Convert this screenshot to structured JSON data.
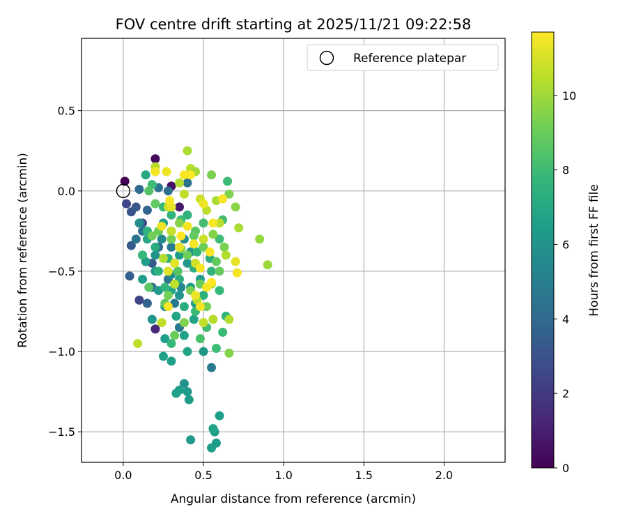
{
  "chart_data": {
    "type": "scatter",
    "title": "FOV centre drift starting at 2025/11/21 09:22:58",
    "xlabel": "Angular distance from reference (arcmin)",
    "ylabel": "Rotation from reference (arcmin)",
    "xlim": [
      -0.26,
      2.38
    ],
    "ylim": [
      -1.69,
      0.95
    ],
    "xticks": [
      0.0,
      0.5,
      1.0,
      1.5,
      2.0
    ],
    "xtick_labels": [
      "0.0",
      "0.5",
      "1.0",
      "1.5",
      "2.0"
    ],
    "yticks": [
      0.5,
      0.0,
      -0.5,
      -1.0,
      -1.5
    ],
    "ytick_labels": [
      "0.5",
      "0.0",
      "−0.5",
      "−1.0",
      "−1.5"
    ],
    "grid": true,
    "legend": {
      "position": "top-right",
      "entries": [
        "Reference platepar"
      ]
    },
    "reference_point": {
      "x": 0.0,
      "y": 0.0,
      "label": "Reference platepar"
    },
    "colorbar": {
      "label": "Hours from first FF file",
      "min": 0,
      "max": 11.7,
      "colormap": "viridis",
      "ticks": [
        0,
        2,
        4,
        6,
        8,
        10
      ],
      "tick_labels": [
        "0",
        "2",
        "4",
        "6",
        "8",
        "10"
      ]
    },
    "colormap_stops": [
      "#440154",
      "#482878",
      "#3e4989",
      "#31688e",
      "#26828e",
      "#1f9e89",
      "#35b779",
      "#6ece58",
      "#b5de2b",
      "#fde725"
    ],
    "series": [
      {
        "name": "FOV centre drift",
        "points": [
          [
            0.01,
            0.06,
            0.0
          ],
          [
            0.2,
            0.2,
            0.3
          ],
          [
            0.3,
            0.03,
            0.5
          ],
          [
            0.35,
            -0.1,
            0.8
          ],
          [
            0.2,
            -0.86,
            1.3
          ],
          [
            0.02,
            -0.08,
            2.5
          ],
          [
            0.05,
            -0.13,
            3.0
          ],
          [
            0.08,
            -0.1,
            3.2
          ],
          [
            0.12,
            -0.2,
            2.8
          ],
          [
            0.1,
            -0.68,
            2.5
          ],
          [
            0.04,
            -0.53,
            3.5
          ],
          [
            0.05,
            -0.34,
            3.3
          ],
          [
            0.15,
            -0.12,
            3.8
          ],
          [
            0.12,
            -0.4,
            3.0
          ],
          [
            0.18,
            -0.45,
            3.3
          ],
          [
            0.1,
            0.01,
            4.0
          ],
          [
            0.22,
            0.02,
            4.5
          ],
          [
            0.28,
            0.0,
            4.3
          ],
          [
            0.4,
            0.05,
            4.5
          ],
          [
            0.55,
            -1.1,
            4.8
          ],
          [
            0.3,
            -0.35,
            4.8
          ],
          [
            0.25,
            -0.2,
            4.2
          ],
          [
            0.18,
            -0.6,
            4.3
          ],
          [
            0.15,
            -0.7,
            3.6
          ],
          [
            0.35,
            -0.85,
            4.7
          ],
          [
            0.12,
            -0.25,
            4.5
          ],
          [
            0.28,
            -0.55,
            4.6
          ],
          [
            0.22,
            -0.35,
            4.0
          ],
          [
            0.08,
            -0.3,
            4.5
          ],
          [
            0.32,
            -0.7,
            4.8
          ],
          [
            0.38,
            -1.2,
            6.0
          ],
          [
            0.4,
            -1.25,
            6.3
          ],
          [
            0.35,
            -1.24,
            6.5
          ],
          [
            0.33,
            -1.26,
            6.6
          ],
          [
            0.41,
            -1.3,
            6.4
          ],
          [
            0.42,
            -1.55,
            6.2
          ],
          [
            0.55,
            -1.6,
            6.5
          ],
          [
            0.57,
            -1.5,
            6.4
          ],
          [
            0.56,
            -1.48,
            6.7
          ],
          [
            0.58,
            -1.57,
            6.3
          ],
          [
            0.6,
            -1.4,
            6.5
          ],
          [
            0.25,
            -1.03,
            6.6
          ],
          [
            0.3,
            -1.06,
            6.6
          ],
          [
            0.4,
            -1.0,
            6.8
          ],
          [
            0.5,
            -1.0,
            6.2
          ],
          [
            0.45,
            -0.7,
            6.3
          ],
          [
            0.14,
            0.1,
            7.0
          ],
          [
            0.15,
            -0.3,
            6.9
          ],
          [
            0.25,
            -0.2,
            6.7
          ],
          [
            0.3,
            -0.25,
            6.6
          ],
          [
            0.35,
            -0.4,
            6.4
          ],
          [
            0.4,
            -0.45,
            6.2
          ],
          [
            0.28,
            -0.5,
            6.6
          ],
          [
            0.22,
            -0.62,
            6.3
          ],
          [
            0.35,
            -0.65,
            6.1
          ],
          [
            0.26,
            -0.92,
            6.5
          ],
          [
            0.38,
            -0.9,
            6.7
          ],
          [
            0.18,
            -0.8,
            6.2
          ],
          [
            0.42,
            -0.6,
            6.5
          ],
          [
            0.48,
            -0.55,
            6.4
          ],
          [
            0.2,
            -0.4,
            6.0
          ],
          [
            0.33,
            -0.78,
            6.8
          ],
          [
            0.12,
            -0.55,
            6.5
          ],
          [
            0.24,
            -0.3,
            5.5
          ],
          [
            0.3,
            -0.52,
            5.8
          ],
          [
            0.36,
            -0.6,
            5.5
          ],
          [
            0.1,
            -0.2,
            5.8
          ],
          [
            0.26,
            -0.72,
            6.0
          ],
          [
            0.44,
            -0.8,
            6.8
          ],
          [
            0.32,
            -0.45,
            5.9
          ],
          [
            0.2,
            -0.5,
            6.2
          ],
          [
            0.38,
            -0.3,
            5.7
          ],
          [
            0.14,
            -0.44,
            6.4
          ],
          [
            0.42,
            -0.38,
            6.0
          ],
          [
            0.3,
            -0.62,
            6.9
          ],
          [
            0.18,
            0.04,
            8.0
          ],
          [
            0.25,
            -0.1,
            7.8
          ],
          [
            0.4,
            -0.15,
            7.5
          ],
          [
            0.5,
            -0.2,
            8.2
          ],
          [
            0.6,
            -0.3,
            8.0
          ],
          [
            0.55,
            -0.5,
            7.6
          ],
          [
            0.5,
            -0.65,
            7.4
          ],
          [
            0.45,
            -0.75,
            7.9
          ],
          [
            0.35,
            -0.55,
            7.3
          ],
          [
            0.2,
            -0.35,
            7.2
          ],
          [
            0.3,
            -0.15,
            7.6
          ],
          [
            0.15,
            -0.25,
            7.5
          ],
          [
            0.28,
            -0.42,
            7.7
          ],
          [
            0.64,
            -0.78,
            7.5
          ],
          [
            0.6,
            -0.62,
            7.8
          ],
          [
            0.52,
            -0.85,
            8.1
          ],
          [
            0.3,
            -0.95,
            7.8
          ],
          [
            0.48,
            -0.92,
            8.3
          ],
          [
            0.62,
            -0.88,
            7.9
          ],
          [
            0.58,
            -0.98,
            8.0
          ],
          [
            0.22,
            -0.5,
            7.4
          ],
          [
            0.38,
            -0.72,
            7.2
          ],
          [
            0.44,
            -0.48,
            7.4
          ],
          [
            0.36,
            -0.18,
            7.9
          ],
          [
            0.26,
            -0.6,
            7.7
          ],
          [
            0.62,
            -0.18,
            8.2
          ],
          [
            0.65,
            0.06,
            8.0
          ],
          [
            0.12,
            -0.4,
            7.8
          ],
          [
            0.46,
            -0.38,
            7.6
          ],
          [
            0.54,
            -0.42,
            7.3
          ],
          [
            0.16,
            0.0,
            8.5
          ],
          [
            0.2,
            -0.08,
            8.8
          ],
          [
            0.22,
            -0.25,
            9.0
          ],
          [
            0.3,
            -0.3,
            9.2
          ],
          [
            0.35,
            -0.2,
            9.5
          ],
          [
            0.45,
            -0.25,
            8.7
          ],
          [
            0.5,
            -0.35,
            9.0
          ],
          [
            0.55,
            0.1,
            9.3
          ],
          [
            0.6,
            -0.5,
            8.9
          ],
          [
            0.4,
            -0.4,
            9.1
          ],
          [
            0.34,
            -0.5,
            8.6
          ],
          [
            0.28,
            -0.65,
            9.2
          ],
          [
            0.38,
            -0.82,
            9.4
          ],
          [
            0.48,
            -0.58,
            9.0
          ],
          [
            0.58,
            -0.44,
            8.8
          ],
          [
            0.66,
            -0.02,
            9.4
          ],
          [
            0.7,
            -0.1,
            9.6
          ],
          [
            0.63,
            -0.35,
            9.3
          ],
          [
            0.85,
            -0.3,
            9.8
          ],
          [
            0.9,
            -0.46,
            9.9
          ],
          [
            0.66,
            -1.01,
            9.5
          ],
          [
            0.18,
            -0.28,
            9.1
          ],
          [
            0.26,
            -0.7,
            8.9
          ],
          [
            0.42,
            -0.62,
            9.3
          ],
          [
            0.52,
            -0.72,
            9.2
          ],
          [
            0.16,
            -0.6,
            8.7
          ],
          [
            0.32,
            -0.9,
            9.0
          ],
          [
            0.44,
            -0.28,
            8.8
          ],
          [
            0.56,
            -0.27,
            9.5
          ],
          [
            0.36,
            -0.36,
            9.4
          ],
          [
            0.09,
            -0.95,
            10.5
          ],
          [
            0.2,
            0.15,
            10.4
          ],
          [
            0.28,
            -0.1,
            10.7
          ],
          [
            0.4,
            0.25,
            10.2
          ],
          [
            0.42,
            0.14,
            10.4
          ],
          [
            0.45,
            0.12,
            10.1
          ],
          [
            0.35,
            0.05,
            10.3
          ],
          [
            0.38,
            -0.02,
            10.6
          ],
          [
            0.48,
            -0.05,
            10.8
          ],
          [
            0.52,
            -0.12,
            10.5
          ],
          [
            0.58,
            -0.06,
            10.2
          ],
          [
            0.66,
            -0.8,
            10.3
          ],
          [
            0.5,
            -0.82,
            10.6
          ],
          [
            0.56,
            -0.8,
            10.4
          ],
          [
            0.3,
            -0.25,
            10.7
          ],
          [
            0.25,
            -0.42,
            10.3
          ],
          [
            0.32,
            -0.58,
            10.6
          ],
          [
            0.45,
            -0.45,
            10.9
          ],
          [
            0.55,
            -0.58,
            10.1
          ],
          [
            0.6,
            -0.2,
            10.5
          ],
          [
            0.72,
            -0.23,
            10.2
          ],
          [
            0.5,
            -0.3,
            10.8
          ],
          [
            0.46,
            -0.68,
            10.4
          ],
          [
            0.24,
            -0.82,
            10.6
          ],
          [
            0.64,
            -0.4,
            10.3
          ],
          [
            0.2,
            0.12,
            11.5
          ],
          [
            0.27,
            0.12,
            11.4
          ],
          [
            0.38,
            0.1,
            11.6
          ],
          [
            0.42,
            0.1,
            11.7
          ],
          [
            0.3,
            -0.1,
            11.3
          ],
          [
            0.29,
            -0.06,
            11.5
          ],
          [
            0.5,
            -0.08,
            11.4
          ],
          [
            0.56,
            -0.2,
            11.6
          ],
          [
            0.4,
            -0.22,
            11.5
          ],
          [
            0.35,
            -0.35,
            11.3
          ],
          [
            0.28,
            -0.5,
            11.2
          ],
          [
            0.48,
            -0.48,
            11.6
          ],
          [
            0.52,
            -0.6,
            11.5
          ],
          [
            0.55,
            -0.57,
            11.7
          ],
          [
            0.45,
            -0.65,
            11.4
          ],
          [
            0.48,
            -0.72,
            11.5
          ],
          [
            0.28,
            -0.72,
            11.6
          ],
          [
            0.7,
            -0.44,
            11.3
          ],
          [
            0.71,
            -0.51,
            11.5
          ],
          [
            0.62,
            -0.05,
            11.6
          ],
          [
            0.24,
            -0.22,
            11.4
          ],
          [
            0.36,
            -0.28,
            11.7
          ],
          [
            0.44,
            -0.33,
            11.5
          ],
          [
            0.54,
            -0.38,
            11.6
          ],
          [
            0.32,
            -0.45,
            11.2
          ]
        ]
      }
    ]
  }
}
